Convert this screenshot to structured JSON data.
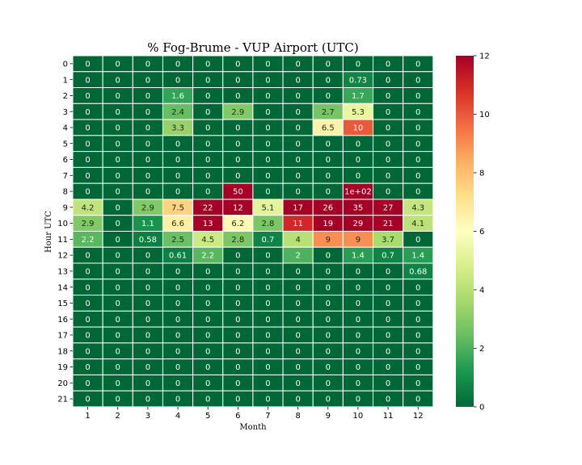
{
  "chart_data": {
    "type": "heatmap",
    "title": "% Fog-Brume - VUP Airport (UTC)",
    "xlabel": "Month",
    "ylabel": "Hour UTC",
    "x_categories": [
      "1",
      "2",
      "3",
      "4",
      "5",
      "6",
      "7",
      "8",
      "9",
      "10",
      "11",
      "12"
    ],
    "y_categories": [
      "0",
      "1",
      "2",
      "3",
      "4",
      "5",
      "6",
      "7",
      "8",
      "9",
      "10",
      "11",
      "12",
      "13",
      "14",
      "15",
      "16",
      "17",
      "18",
      "19",
      "20",
      "21"
    ],
    "values": [
      [
        0,
        0,
        0,
        0,
        0,
        0,
        0,
        0,
        0,
        0,
        0,
        0
      ],
      [
        0,
        0,
        0,
        0,
        0,
        0,
        0,
        0,
        0,
        0.73,
        0,
        0
      ],
      [
        0,
        0,
        0,
        1.6,
        0,
        0,
        0,
        0,
        0,
        1.7,
        0,
        0
      ],
      [
        0,
        0,
        0,
        2.4,
        0,
        2.9,
        0,
        0,
        2.7,
        5.3,
        0,
        0
      ],
      [
        0,
        0,
        0,
        3.3,
        0,
        0,
        0,
        0,
        6.5,
        10,
        0,
        0
      ],
      [
        0,
        0,
        0,
        0,
        0,
        0,
        0,
        0,
        0,
        0,
        0,
        0
      ],
      [
        0,
        0,
        0,
        0,
        0,
        0,
        0,
        0,
        0,
        0,
        0,
        0
      ],
      [
        0,
        0,
        0,
        0,
        0,
        0,
        0,
        0,
        0,
        0,
        0,
        0
      ],
      [
        0,
        0,
        0,
        0,
        0,
        50,
        0,
        0,
        0,
        100,
        0,
        0
      ],
      [
        4.2,
        0,
        2.9,
        7.5,
        22,
        12,
        5.1,
        17,
        26,
        35,
        27,
        4.3
      ],
      [
        2.9,
        0,
        1.1,
        6.6,
        13,
        6.2,
        2.8,
        11,
        19,
        29,
        21,
        4.1
      ],
      [
        2.2,
        0,
        0.58,
        2.5,
        4.5,
        2.8,
        0.7,
        4,
        9,
        9,
        3.7,
        0
      ],
      [
        0,
        0,
        0,
        0.61,
        2.2,
        0,
        0,
        2,
        0,
        1.4,
        0.7,
        1.4
      ],
      [
        0,
        0,
        0,
        0,
        0,
        0,
        0,
        0,
        0,
        0,
        0,
        0.68
      ],
      [
        0,
        0,
        0,
        0,
        0,
        0,
        0,
        0,
        0,
        0,
        0,
        0
      ],
      [
        0,
        0,
        0,
        0,
        0,
        0,
        0,
        0,
        0,
        0,
        0,
        0
      ],
      [
        0,
        0,
        0,
        0,
        0,
        0,
        0,
        0,
        0,
        0,
        0,
        0
      ],
      [
        0,
        0,
        0,
        0,
        0,
        0,
        0,
        0,
        0,
        0,
        0,
        0
      ],
      [
        0,
        0,
        0,
        0,
        0,
        0,
        0,
        0,
        0,
        0,
        0,
        0
      ],
      [
        0,
        0,
        0,
        0,
        0,
        0,
        0,
        0,
        0,
        0,
        0,
        0
      ],
      [
        0,
        0,
        0,
        0,
        0,
        0,
        0,
        0,
        0,
        0,
        0,
        0
      ],
      [
        0,
        0,
        0,
        0,
        0,
        0,
        0,
        0,
        0,
        0,
        0,
        0
      ]
    ],
    "annotations": [
      [
        "0",
        "0",
        "0",
        "0",
        "0",
        "0",
        "0",
        "0",
        "0",
        "0",
        "0",
        "0"
      ],
      [
        "0",
        "0",
        "0",
        "0",
        "0",
        "0",
        "0",
        "0",
        "0",
        "0.73",
        "0",
        "0"
      ],
      [
        "0",
        "0",
        "0",
        "1.6",
        "0",
        "0",
        "0",
        "0",
        "0",
        "1.7",
        "0",
        "0"
      ],
      [
        "0",
        "0",
        "0",
        "2.4",
        "0",
        "2.9",
        "0",
        "0",
        "2.7",
        "5.3",
        "0",
        "0"
      ],
      [
        "0",
        "0",
        "0",
        "3.3",
        "0",
        "0",
        "0",
        "0",
        "6.5",
        "10",
        "0",
        "0"
      ],
      [
        "0",
        "0",
        "0",
        "0",
        "0",
        "0",
        "0",
        "0",
        "0",
        "0",
        "0",
        "0"
      ],
      [
        "0",
        "0",
        "0",
        "0",
        "0",
        "0",
        "0",
        "0",
        "0",
        "0",
        "0",
        "0"
      ],
      [
        "0",
        "0",
        "0",
        "0",
        "0",
        "0",
        "0",
        "0",
        "0",
        "0",
        "0",
        "0"
      ],
      [
        "0",
        "0",
        "0",
        "0",
        "0",
        "50",
        "0",
        "0",
        "0",
        "1e+02",
        "0",
        "0"
      ],
      [
        "4.2",
        "0",
        "2.9",
        "7.5",
        "22",
        "12",
        "5.1",
        "17",
        "26",
        "35",
        "27",
        "4.3"
      ],
      [
        "2.9",
        "0",
        "1.1",
        "6.6",
        "13",
        "6.2",
        "2.8",
        "11",
        "19",
        "29",
        "21",
        "4.1"
      ],
      [
        "2.2",
        "0",
        "0.58",
        "2.5",
        "4.5",
        "2.8",
        "0.7",
        "4",
        "9",
        "9",
        "3.7",
        "0"
      ],
      [
        "0",
        "0",
        "0",
        "0.61",
        "2.2",
        "0",
        "0",
        "2",
        "0",
        "1.4",
        "0.7",
        "1.4"
      ],
      [
        "0",
        "0",
        "0",
        "0",
        "0",
        "0",
        "0",
        "0",
        "0",
        "0",
        "0",
        "0.68"
      ],
      [
        "0",
        "0",
        "0",
        "0",
        "0",
        "0",
        "0",
        "0",
        "0",
        "0",
        "0",
        "0"
      ],
      [
        "0",
        "0",
        "0",
        "0",
        "0",
        "0",
        "0",
        "0",
        "0",
        "0",
        "0",
        "0"
      ],
      [
        "0",
        "0",
        "0",
        "0",
        "0",
        "0",
        "0",
        "0",
        "0",
        "0",
        "0",
        "0"
      ],
      [
        "0",
        "0",
        "0",
        "0",
        "0",
        "0",
        "0",
        "0",
        "0",
        "0",
        "0",
        "0"
      ],
      [
        "0",
        "0",
        "0",
        "0",
        "0",
        "0",
        "0",
        "0",
        "0",
        "0",
        "0",
        "0"
      ],
      [
        "0",
        "0",
        "0",
        "0",
        "0",
        "0",
        "0",
        "0",
        "0",
        "0",
        "0",
        "0"
      ],
      [
        "0",
        "0",
        "0",
        "0",
        "0",
        "0",
        "0",
        "0",
        "0",
        "0",
        "0",
        "0"
      ],
      [
        "0",
        "0",
        "0",
        "0",
        "0",
        "0",
        "0",
        "0",
        "0",
        "0",
        "0",
        "0"
      ]
    ],
    "colormap": "RdYlGn_r",
    "color_range": [
      0,
      12
    ],
    "colorbar_ticks": [
      "0",
      "2",
      "4",
      "6",
      "8",
      "10",
      "12"
    ],
    "gridline_color": "#ffffff",
    "legend_position": "right"
  }
}
